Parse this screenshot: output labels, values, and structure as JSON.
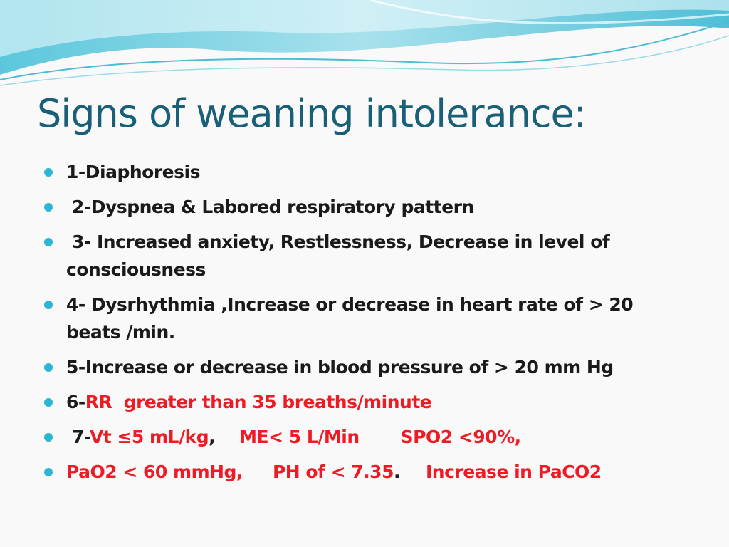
{
  "title": "Signs of weaning intolerance:",
  "bullets": {
    "b1": "1-Diaphoresis",
    "b2": "2-Dyspnea & Labored respiratory pattern",
    "b3": "3- Increased anxiety, Restlessness, Decrease in level of consciousness",
    "b4": "4- Dysrhythmia ,Increase or decrease in heart rate of > 20 beats /min.",
    "b5": "5-Increase or decrease in blood pressure of > 20 mm Hg",
    "b6": {
      "prefix": "6-",
      "rr": "RR  greater than 35 breaths/minute"
    },
    "b7": {
      "prefix": "7-",
      "vt": "Vt ≤5 mL/kg",
      "comma": ",",
      "me": "ME< 5 L/Min",
      "spo2": "SPO2 <90%,"
    },
    "b8": {
      "pao2": "PaO2 < 60 mmHg,",
      "ph": "PH of < 7.35",
      "period": ".",
      "paco2": "Increase in PaCO2"
    }
  },
  "colors": {
    "title": "#1a5f78",
    "bullet": "#2bb6d3",
    "highlight": "#ee1b24",
    "text": "#1a1a1a"
  }
}
